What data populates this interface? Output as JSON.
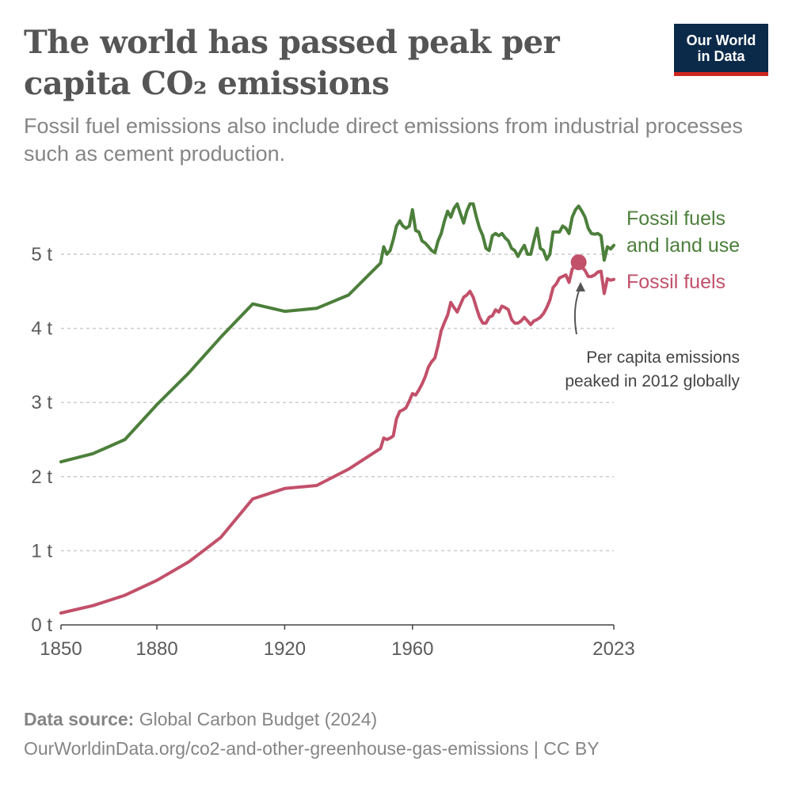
{
  "header": {
    "title": "The world has passed peak per capita CO₂ emissions",
    "subtitle": "Fossil fuel emissions also include direct emissions from industrial processes such as cement production."
  },
  "logo": {
    "line1": "Our World",
    "line2": "in Data"
  },
  "colors": {
    "fossil_land": "#4c7f3b",
    "fossil": "#c2506a",
    "grid": "#cccccc",
    "axis": "#444444"
  },
  "chart_data": {
    "type": "line",
    "title": "The world has passed peak per capita CO₂ emissions",
    "xlim": [
      1850,
      2023
    ],
    "ylim": [
      0,
      5.8
    ],
    "y_ticks": [
      0,
      1,
      2,
      3,
      4,
      5
    ],
    "y_tick_labels": [
      "0 t",
      "1 t",
      "2 t",
      "3 t",
      "4 t",
      "5 t"
    ],
    "x_ticks": [
      1850,
      1880,
      1920,
      1960,
      2023
    ],
    "x_tick_labels": [
      "1850",
      "1880",
      "1920",
      "1960",
      "2023"
    ],
    "grid": "horizontal dashed",
    "legend": "inline-right",
    "series": [
      {
        "name": "Fossil fuels and land use",
        "label_lines": [
          "Fossil fuels",
          "and land use"
        ],
        "color": "#4c7f3b",
        "x": [
          1850,
          1860,
          1870,
          1880,
          1890,
          1900,
          1910,
          1920,
          1930,
          1940,
          1950,
          1951,
          1952,
          1953,
          1954,
          1955,
          1956,
          1957,
          1958,
          1959,
          1960,
          1961,
          1962,
          1963,
          1964,
          1965,
          1966,
          1967,
          1968,
          1969,
          1970,
          1971,
          1972,
          1973,
          1974,
          1975,
          1976,
          1977,
          1978,
          1979,
          1980,
          1981,
          1982,
          1983,
          1984,
          1985,
          1986,
          1987,
          1988,
          1989,
          1990,
          1991,
          1992,
          1993,
          1994,
          1995,
          1996,
          1997,
          1998,
          1999,
          2000,
          2001,
          2002,
          2003,
          2004,
          2005,
          2006,
          2007,
          2008,
          2009,
          2010,
          2011,
          2012,
          2013,
          2014,
          2015,
          2016,
          2017,
          2018,
          2019,
          2020,
          2021,
          2022,
          2023
        ],
        "y": [
          2.2,
          2.31,
          2.5,
          2.97,
          3.4,
          3.88,
          4.33,
          4.23,
          4.27,
          4.45,
          4.88,
          5.1,
          5.0,
          5.05,
          5.2,
          5.38,
          5.45,
          5.38,
          5.35,
          5.38,
          5.6,
          5.32,
          5.3,
          5.18,
          5.15,
          5.1,
          5.05,
          5.02,
          5.18,
          5.28,
          5.45,
          5.58,
          5.5,
          5.62,
          5.68,
          5.55,
          5.42,
          5.58,
          5.68,
          5.68,
          5.5,
          5.35,
          5.25,
          5.08,
          5.05,
          5.25,
          5.28,
          5.25,
          5.28,
          5.22,
          5.18,
          5.08,
          5.05,
          4.97,
          5.05,
          5.12,
          5.0,
          5.0,
          5.18,
          5.35,
          5.08,
          5.05,
          4.93,
          5.0,
          5.3,
          5.3,
          5.3,
          5.38,
          5.35,
          5.28,
          5.5,
          5.6,
          5.65,
          5.58,
          5.5,
          5.35,
          5.28,
          5.27,
          5.28,
          5.25,
          4.92,
          5.1,
          5.07,
          5.12
        ]
      },
      {
        "name": "Fossil fuels",
        "label_lines": [
          "Fossil fuels"
        ],
        "color": "#c2506a",
        "x": [
          1850,
          1860,
          1870,
          1880,
          1890,
          1900,
          1910,
          1920,
          1930,
          1940,
          1950,
          1951,
          1952,
          1953,
          1954,
          1955,
          1956,
          1957,
          1958,
          1959,
          1960,
          1961,
          1962,
          1963,
          1964,
          1965,
          1966,
          1967,
          1968,
          1969,
          1970,
          1971,
          1972,
          1973,
          1974,
          1975,
          1976,
          1977,
          1978,
          1979,
          1980,
          1981,
          1982,
          1983,
          1984,
          1985,
          1986,
          1987,
          1988,
          1989,
          1990,
          1991,
          1992,
          1993,
          1994,
          1995,
          1996,
          1997,
          1998,
          1999,
          2000,
          2001,
          2002,
          2003,
          2004,
          2005,
          2006,
          2007,
          2008,
          2009,
          2010,
          2011,
          2012,
          2013,
          2014,
          2015,
          2016,
          2017,
          2018,
          2019,
          2020,
          2021,
          2022,
          2023
        ],
        "y": [
          0.16,
          0.26,
          0.4,
          0.6,
          0.85,
          1.18,
          1.7,
          1.84,
          1.88,
          2.1,
          2.38,
          2.52,
          2.5,
          2.52,
          2.55,
          2.78,
          2.88,
          2.9,
          2.93,
          3.02,
          3.12,
          3.1,
          3.17,
          3.25,
          3.35,
          3.48,
          3.55,
          3.6,
          3.77,
          3.97,
          4.08,
          4.18,
          4.35,
          4.28,
          4.22,
          4.32,
          4.42,
          4.45,
          4.5,
          4.42,
          4.28,
          4.15,
          4.07,
          4.07,
          4.15,
          4.17,
          4.25,
          4.22,
          4.3,
          4.28,
          4.25,
          4.12,
          4.07,
          4.07,
          4.1,
          4.15,
          4.1,
          4.05,
          4.1,
          4.12,
          4.15,
          4.2,
          4.28,
          4.38,
          4.55,
          4.6,
          4.68,
          4.7,
          4.72,
          4.62,
          4.8,
          4.85,
          4.87,
          4.83,
          4.78,
          4.7,
          4.7,
          4.72,
          4.76,
          4.77,
          4.47,
          4.67,
          4.65,
          4.66
        ]
      }
    ],
    "annotation": {
      "x": 2012,
      "y": 4.87,
      "lines": [
        "Per capita emissions",
        "peaked in 2012 globally"
      ]
    }
  },
  "footer": {
    "source_label": "Data source:",
    "source_text": " Global Carbon Budget (2024)",
    "url_text": "OurWorldinData.org/co2-and-other-greenhouse-gas-emissions | CC BY"
  }
}
